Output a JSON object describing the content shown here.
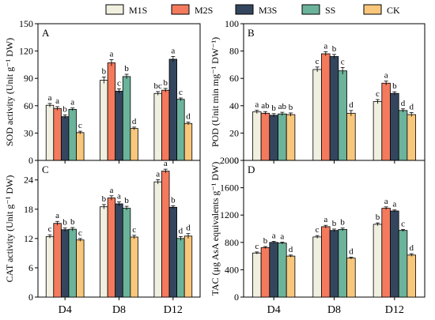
{
  "legend": [
    {
      "name": "M1S",
      "color": "#f1efdf"
    },
    {
      "name": "M2S",
      "color": "#f47a5d"
    },
    {
      "name": "M3S",
      "color": "#34465e"
    },
    {
      "name": "SS",
      "color": "#6bb39a"
    },
    {
      "name": "CK",
      "color": "#f9c77c"
    }
  ],
  "chart_data": [
    {
      "panel": "A",
      "type": "bar",
      "ylabel": "SOD activity (Unit g⁻¹ DW)",
      "ylim": [
        0,
        150
      ],
      "yticks": [
        0,
        30,
        60,
        90,
        120,
        150
      ],
      "categories": [
        "D4",
        "D8",
        "D12"
      ],
      "series": [
        {
          "name": "M1S",
          "values": [
            60.5,
            88,
            73.5
          ],
          "errors": [
            2,
            3.5,
            2
          ],
          "letters": [
            "a",
            "b",
            "bc"
          ]
        },
        {
          "name": "M2S",
          "values": [
            57,
            107,
            77
          ],
          "errors": [
            2,
            3.5,
            2
          ],
          "letters": [
            "a",
            "a",
            "b"
          ]
        },
        {
          "name": "M3S",
          "values": [
            48,
            76,
            111
          ],
          "errors": [
            2,
            2.5,
            3
          ],
          "letters": [
            "b",
            "c",
            "a"
          ]
        },
        {
          "name": "SS",
          "values": [
            56,
            92,
            67
          ],
          "errors": [
            1.5,
            2.5,
            1.5
          ],
          "letters": [
            "a",
            "b",
            "c"
          ]
        },
        {
          "name": "CK",
          "values": [
            30.5,
            35,
            40.5
          ],
          "errors": [
            1.5,
            1.5,
            1.5
          ],
          "letters": [
            "c",
            "d",
            "d"
          ]
        }
      ]
    },
    {
      "panel": "B",
      "type": "bar",
      "ylabel": "POD (Unit min mg⁻¹ DW⁻¹)",
      "ylim": [
        0,
        100
      ],
      "yticks": [
        0,
        20,
        40,
        60,
        80,
        100
      ],
      "categories": [
        "D4",
        "D8",
        "D12"
      ],
      "series": [
        {
          "name": "M1S",
          "values": [
            35.5,
            66.5,
            43
          ],
          "errors": [
            1.2,
            1.8,
            1.5
          ],
          "letters": [
            "a",
            "c",
            "c"
          ]
        },
        {
          "name": "M2S",
          "values": [
            34.5,
            78,
            56.5
          ],
          "errors": [
            1.2,
            1.5,
            1.5
          ],
          "letters": [
            "ab",
            "a",
            "a"
          ]
        },
        {
          "name": "M3S",
          "values": [
            33,
            76,
            49
          ],
          "errors": [
            1.2,
            1.5,
            1.2
          ],
          "letters": [
            "b",
            "b",
            "b"
          ]
        },
        {
          "name": "SS",
          "values": [
            34,
            65.5,
            36.5
          ],
          "errors": [
            1.2,
            2.5,
            1.2
          ],
          "letters": [
            "ab",
            "c",
            "d"
          ]
        },
        {
          "name": "CK",
          "values": [
            33.5,
            34.5,
            33.5
          ],
          "errors": [
            1.2,
            2,
            1.5
          ],
          "letters": [
            "b",
            "d",
            "d"
          ]
        }
      ]
    },
    {
      "panel": "C",
      "type": "bar",
      "ylabel": "CAT activity (Unit g⁻¹ DW)",
      "ylim": [
        0,
        28
      ],
      "yticks": [
        0,
        6,
        12,
        18,
        24
      ],
      "categories": [
        "D4",
        "D8",
        "D12"
      ],
      "series": [
        {
          "name": "M1S",
          "values": [
            12.4,
            18.5,
            23.6
          ],
          "errors": [
            0.35,
            0.45,
            0.45
          ],
          "letters": [
            "c",
            "b",
            "a"
          ]
        },
        {
          "name": "M2S",
          "values": [
            15.1,
            20.3,
            25.8
          ],
          "errors": [
            0.4,
            0.45,
            0.4
          ],
          "letters": [
            "a",
            "a",
            "a"
          ]
        },
        {
          "name": "M3S",
          "values": [
            13.8,
            19.1,
            18.4
          ],
          "errors": [
            0.35,
            0.4,
            0.3
          ],
          "letters": [
            "b",
            "a",
            "b"
          ]
        },
        {
          "name": "SS",
          "values": [
            13.9,
            18.2,
            12.0
          ],
          "errors": [
            0.35,
            0.4,
            0.4
          ],
          "letters": [
            "b",
            "b",
            "d"
          ]
        },
        {
          "name": "CK",
          "values": [
            11.7,
            12.3,
            12.5
          ],
          "errors": [
            0.3,
            0.35,
            0.5
          ],
          "letters": [
            "c",
            "c",
            "d"
          ]
        }
      ]
    },
    {
      "panel": "D",
      "type": "bar",
      "ylabel": "TAC (μg AsA equivalents g⁻¹ DW)",
      "ylim": [
        0,
        2000
      ],
      "yticks": [
        0,
        400,
        800,
        1200,
        1600,
        2000
      ],
      "categories": [
        "D4",
        "D8",
        "D12"
      ],
      "series": [
        {
          "name": "M1S",
          "values": [
            645,
            880,
            1065
          ],
          "errors": [
            15,
            20,
            20
          ],
          "letters": [
            "c",
            "c",
            "b"
          ]
        },
        {
          "name": "M2S",
          "values": [
            725,
            1030,
            1300
          ],
          "errors": [
            15,
            20,
            20
          ],
          "letters": [
            "b",
            "a",
            "a"
          ]
        },
        {
          "name": "M3S",
          "values": [
            800,
            975,
            1260
          ],
          "errors": [
            15,
            20,
            15
          ],
          "letters": [
            "a",
            "b",
            "a"
          ]
        },
        {
          "name": "SS",
          "values": [
            790,
            990,
            975
          ],
          "errors": [
            15,
            20,
            15
          ],
          "letters": [
            "a",
            "b",
            "c"
          ]
        },
        {
          "name": "CK",
          "values": [
            600,
            570,
            615
          ],
          "errors": [
            15,
            15,
            20
          ],
          "letters": [
            "d",
            "d",
            "d"
          ]
        }
      ]
    }
  ]
}
